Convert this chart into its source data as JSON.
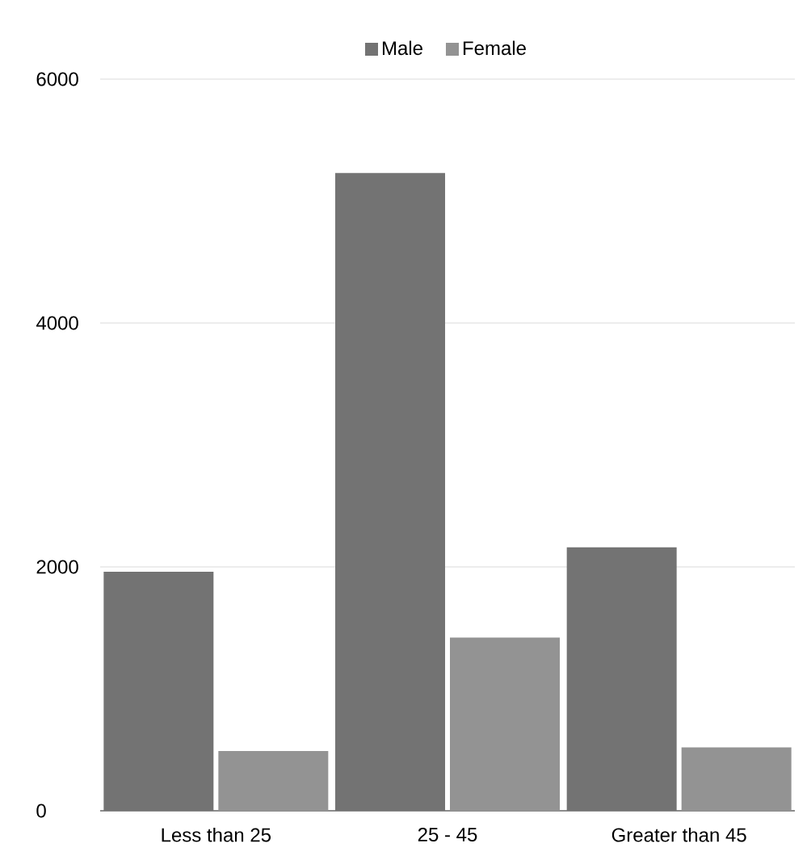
{
  "chart_data": {
    "type": "bar",
    "categories": [
      "Less than 25",
      "25 - 45",
      "Greater than 45"
    ],
    "series": [
      {
        "name": "Male",
        "color": "#737373",
        "values": [
          1960,
          5230,
          2160
        ]
      },
      {
        "name": "Female",
        "color": "#939393",
        "values": [
          490,
          1420,
          520
        ]
      }
    ],
    "ylim": [
      0,
      6000
    ],
    "yticks": [
      0,
      2000,
      4000,
      6000
    ],
    "grid": "y",
    "legend": "top"
  }
}
